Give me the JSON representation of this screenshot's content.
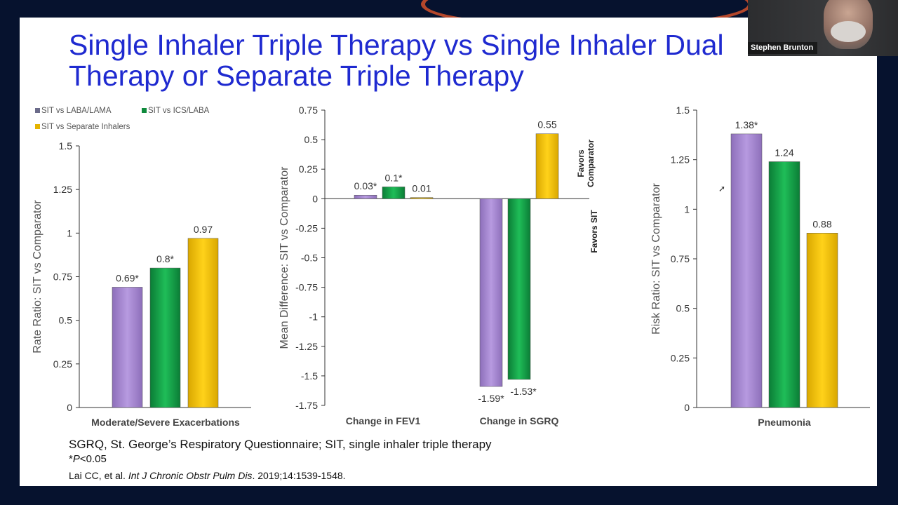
{
  "slide": {
    "title": "Single Inhaler Triple Therapy vs Single Inhaler Dual\nTherapy or Separate Triple Therapy",
    "footnote": "SGRQ, St. George’s Respiratory Questionnaire; SIT, single inhaler triple therapy",
    "significance_star": "*",
    "significance_p": "P",
    "significance_rest": "<0.05",
    "citation_authors": "Lai CC, et al. ",
    "citation_journal": "Int J Chronic Obstr Pulm Dis",
    "citation_rest": ". 2019;14:1539-1548."
  },
  "video": {
    "participant_name": "Stephen Brunton"
  },
  "legend": [
    {
      "label": "SIT vs LABA/LAMA",
      "color": "#6b6b8a"
    },
    {
      "label": "SIT vs ICS/LABA",
      "color": "#0f8a3c"
    },
    {
      "label": "SIT vs Separate Inhalers",
      "color": "#e5b400"
    }
  ],
  "colors": {
    "series": [
      "#a98ad1",
      "#16a84c",
      "#f7c600"
    ]
  },
  "chart_data": [
    {
      "type": "bar",
      "ylabel": "Rate Ratio: SIT vs Comparator",
      "ylim": [
        0,
        1.5
      ],
      "yticks": [
        "0",
        "0.25",
        "0.5",
        "0.75",
        "1",
        "1.25",
        "1.5"
      ],
      "categories": [
        "Moderate/Severe Exacerbations"
      ],
      "series": [
        {
          "name": "SIT vs LABA/LAMA",
          "values": [
            0.69
          ],
          "labels": [
            "0.69*"
          ]
        },
        {
          "name": "SIT vs ICS/LABA",
          "values": [
            0.8
          ],
          "labels": [
            "0.8*"
          ]
        },
        {
          "name": "SIT vs Separate Inhalers",
          "values": [
            0.97
          ],
          "labels": [
            "0.97"
          ]
        }
      ]
    },
    {
      "type": "bar",
      "ylabel": "Mean Difference: SIT vs Comparator",
      "ylim": [
        -1.75,
        0.75
      ],
      "yticks": [
        "-1.75",
        "-1.5",
        "-1.25",
        "-1",
        "-0.75",
        "-0.5",
        "-0.25",
        "0",
        "0.25",
        "0.5",
        "0.75"
      ],
      "categories": [
        "Change in FEV1",
        "Change in SGRQ"
      ],
      "series": [
        {
          "name": "SIT vs LABA/LAMA",
          "values": [
            0.03,
            -1.59
          ],
          "labels": [
            "0.03*",
            "-1.59*"
          ]
        },
        {
          "name": "SIT vs ICS/LABA",
          "values": [
            0.1,
            -1.53
          ],
          "labels": [
            "0.1*",
            "-1.53*"
          ]
        },
        {
          "name": "SIT vs Separate Inhalers",
          "values": [
            0.01,
            0.55
          ],
          "labels": [
            "0.01",
            "0.55"
          ]
        }
      ],
      "annotations": [
        "Favors Comparator",
        "Favors SIT"
      ]
    },
    {
      "type": "bar",
      "ylabel": "Risk Ratio: SIT vs Comparator",
      "ylim": [
        0,
        1.5
      ],
      "yticks": [
        "0",
        "0.25",
        "0.5",
        "0.75",
        "1",
        "1.25",
        "1.5"
      ],
      "categories": [
        "Pneumonia"
      ],
      "series": [
        {
          "name": "SIT vs LABA/LAMA",
          "values": [
            1.38
          ],
          "labels": [
            "1.38*"
          ]
        },
        {
          "name": "SIT vs ICS/LABA",
          "values": [
            1.24
          ],
          "labels": [
            "1.24"
          ]
        },
        {
          "name": "SIT vs Separate Inhalers",
          "values": [
            0.88
          ],
          "labels": [
            "0.88"
          ]
        }
      ]
    }
  ]
}
